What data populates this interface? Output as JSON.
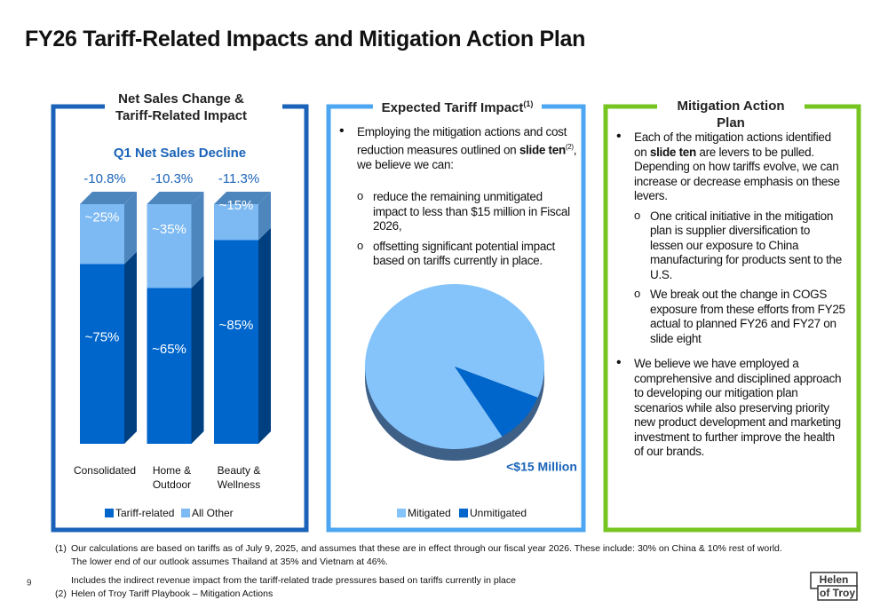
{
  "title": "FY26 Tariff-Related Impacts and Mitigation Action Plan",
  "chart_data": [
    {
      "type": "bar",
      "stacked": true,
      "title": "Net Sales Change & Tariff-Related Impact",
      "subtitle": "Q1 Net Sales Decline",
      "categories": [
        "Consolidated",
        "Home & Outdoor",
        "Beauty & Wellness"
      ],
      "annotations": [
        "-10.8%",
        "-10.3%",
        "-11.3%"
      ],
      "series": [
        {
          "name": "Tariff-related",
          "color": "#0066cc",
          "side_color": "#003f80",
          "values": [
            75,
            65,
            85
          ],
          "value_labels": [
            "~75%",
            "~65%",
            "~85%"
          ]
        },
        {
          "name": "All Other",
          "color": "#7db9f2",
          "side_color": "#4d86bd",
          "values": [
            25,
            35,
            15
          ],
          "value_labels": [
            "~25%",
            "~35%",
            "~15%"
          ]
        }
      ],
      "ylim": [
        0,
        100
      ]
    },
    {
      "type": "pie",
      "title": "Expected Tariff Impact",
      "title_note": "(1)",
      "categories": [
        "Mitigated",
        "Unmitigated"
      ],
      "values": [
        90,
        10
      ],
      "colors": [
        "#85c4fb",
        "#0066cc"
      ],
      "annotation": "<$15 Million"
    }
  ],
  "impact_text": {
    "parts": [
      "Employing the mitigation actions and cost reduction measures outlined on ",
      "slide ten",
      "(2)",
      ", we believe we can:"
    ],
    "sub": [
      "reduce the remaining unmitigated impact to less than $15 million in Fiscal 2026,",
      "offsetting significant potential impact based on tariffs currently in place."
    ]
  },
  "mitigation_panel": {
    "title": "Mitigation Action Plan",
    "bullets": [
      {
        "parts": [
          "Each of the mitigation actions identified on ",
          "slide ten",
          " are levers to be pulled. Depending on how tariffs evolve, we can increase or decrease emphasis on these levers."
        ],
        "sub": [
          "One critical initiative in the mitigation plan is supplier diversification to lessen our exposure to China manufacturing for products sent to the U.S.",
          "We break out the change in COGS exposure from these efforts from FY25 actual to planned FY26 and FY27 on slide eight"
        ]
      },
      {
        "text": "We believe we have employed a comprehensive and disciplined approach to developing our mitigation plan scenarios while also preserving priority new product development and marketing investment to further improve the health of our brands."
      }
    ]
  },
  "footnotes": [
    {
      "marker": "(1)",
      "lines": [
        "Our calculations are based on tariffs as of July 9, 2025, and assumes that these are in effect through our fiscal year 2026. These include:  30% on China & 10% rest of world.",
        "The lower end of our outlook assumes Thailand at 35% and Vietnam at 46%.",
        "Includes the indirect revenue impact from the tariff-related trade pressures based on tariffs currently in place"
      ]
    },
    {
      "marker": "(2)",
      "lines": [
        "Helen of Troy Tariff Playbook – Mitigation Actions"
      ]
    }
  ],
  "page_number": "9",
  "logo": [
    "Helen",
    "of Troy"
  ]
}
